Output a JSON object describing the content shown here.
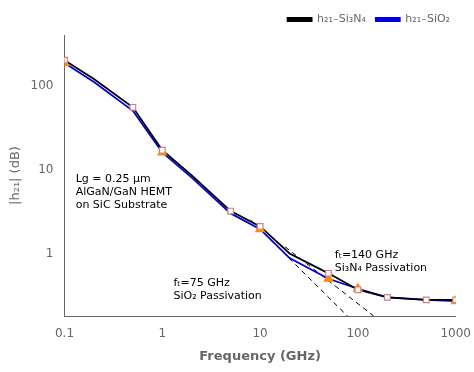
{
  "chart_data": {
    "type": "line",
    "xlabel": "Frequency (GHz)",
    "ylabel": "|h₂₁| (dB)",
    "log": true,
    "xlim": [
      0.1,
      1000
    ],
    "ylim": [
      0.18,
      400
    ],
    "xticks": [
      0.1,
      1,
      10,
      100,
      1000
    ],
    "yticks": [
      1,
      10,
      100
    ],
    "grid": false,
    "legend": "upper right",
    "series": [
      {
        "name": "h₂₁₋Si₃N₄",
        "type": "line",
        "line_style": "solid",
        "color": "#000000",
        "x": [
          0.1,
          0.2,
          0.5,
          1.0,
          2.0,
          5.0,
          10.0,
          20.0,
          50.0,
          100.0,
          200.0,
          500.0,
          1000.0
        ],
        "values": [
          200,
          120,
          55,
          17,
          8.5,
          3.2,
          2.1,
          1.0,
          0.58,
          0.37,
          0.3,
          0.28,
          0.28
        ]
      },
      {
        "name": "h₂₁₋SiO₂",
        "type": "line",
        "line_style": "solid",
        "color": "#0000dd",
        "x": [
          0.1,
          0.2,
          0.5,
          1.0,
          2.0,
          5.0,
          10.0,
          20.0,
          50.0,
          100.0,
          200.0,
          500.0,
          1000.0
        ],
        "values": [
          185,
          110,
          50,
          16,
          8.0,
          3.0,
          1.95,
          0.88,
          0.5,
          0.38,
          0.3,
          0.28,
          0.27
        ]
      },
      {
        "type": "scatter",
        "marker": "open_square",
        "color": "#d08080",
        "x": [
          0.1,
          0.5,
          1.0,
          5.0,
          10.0,
          50.0,
          100.0,
          200.0,
          500.0,
          1000.0
        ],
        "values": [
          200,
          55,
          17,
          3.2,
          2.1,
          0.58,
          0.37,
          0.3,
          0.28,
          0.28
        ]
      },
      {
        "type": "scatter",
        "marker": "triangle",
        "color": "#ff8c00",
        "x": [
          0.1,
          1.0,
          10.0,
          50.0,
          100.0,
          1000.0
        ],
        "values": [
          185,
          16,
          1.95,
          0.5,
          0.38,
          0.27
        ]
      },
      {
        "type": "line",
        "line_style": "dashed",
        "color": "#000000",
        "x": [
          8.0,
          78.0
        ],
        "values": [
          2.5,
          0.18
        ]
      },
      {
        "type": "line",
        "line_style": "dashed",
        "color": "#000000",
        "x": [
          18.0,
          145.0
        ],
        "values": [
          1.2,
          0.18
        ]
      }
    ],
    "annotations": [
      {
        "text": "Lg = 0.25 μm\nAlGaN/GaN HEMT\non SiC Substrate",
        "x": 0.13,
        "y": 9.0
      },
      {
        "text": "fₜ=75 GHz\nSiO₂ Passivation",
        "x": 1.3,
        "y": 0.52
      },
      {
        "text": "fₜ=140 GHz\nSi₃N₄ Passivation",
        "x": 58,
        "y": 1.1
      }
    ]
  }
}
